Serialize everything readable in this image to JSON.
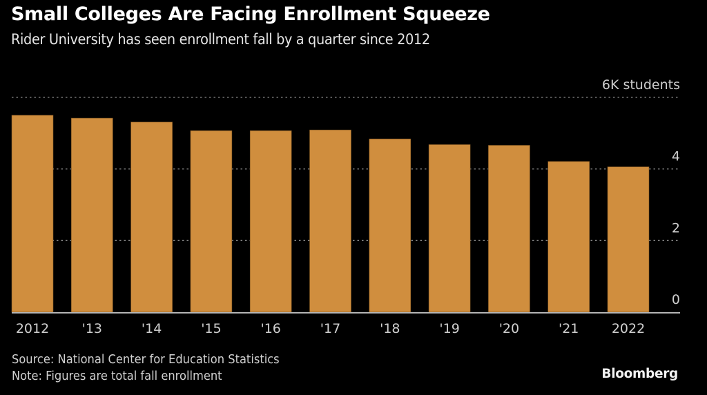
{
  "header": {
    "title": "Small Colleges Are Facing Enrollment Squeeze",
    "subtitle": "Rider University has seen enrollment fall by a quarter since 2012"
  },
  "footer": {
    "source": "Source: National Center for Education Statistics",
    "note": "Note: Figures are total fall enrollment",
    "brand": "Bloomberg"
  },
  "colors": {
    "background": "#000000",
    "bar": "#D08E3E",
    "gridline": "#8a8a8a",
    "baseline": "#b5b5b5"
  },
  "chart_data": {
    "type": "bar",
    "title": "Small Colleges Are Facing Enrollment Squeeze",
    "subtitle": "Rider University has seen enrollment fall by a quarter since 2012",
    "xlabel": "",
    "ylabel": "",
    "units": "thousand students",
    "categories": [
      "2012",
      "'13",
      "'14",
      "'15",
      "'16",
      "'17",
      "'18",
      "'19",
      "'20",
      "'21",
      "2022"
    ],
    "values": [
      5.5,
      5.42,
      5.31,
      5.07,
      5.07,
      5.09,
      4.84,
      4.68,
      4.66,
      4.21,
      4.06
    ],
    "ylim": [
      0,
      6
    ],
    "yticks": [
      0,
      2,
      4,
      6
    ],
    "ytick_labels": [
      "0",
      "2",
      "4",
      "6K students"
    ],
    "y_axis_side": "right",
    "grid": true,
    "grid_style": "dotted",
    "legend": "none"
  }
}
